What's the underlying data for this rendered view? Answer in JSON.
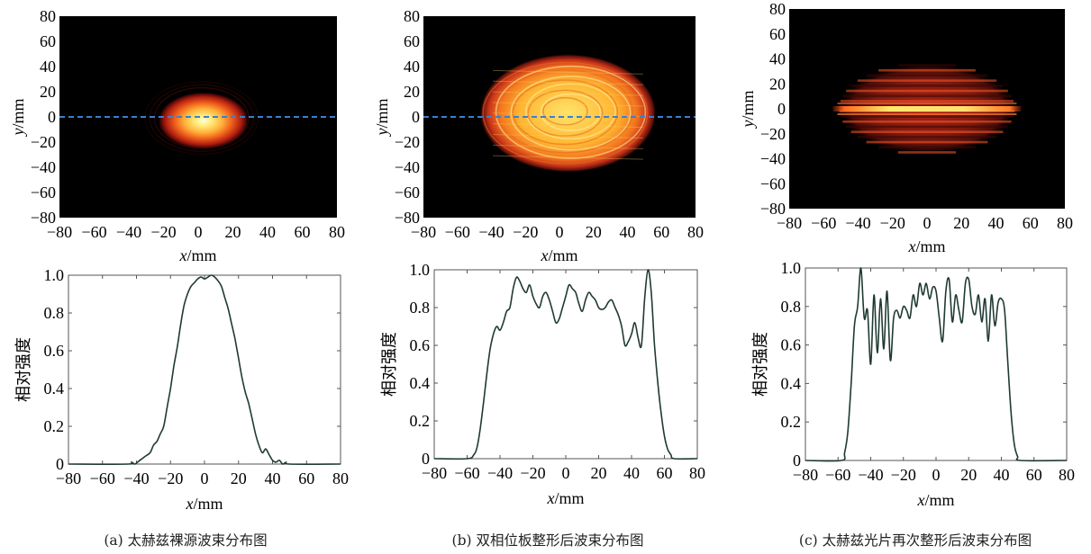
{
  "figure": {
    "captions": [
      "(a) 太赫兹裸源波束分布图",
      "(b) 双相位板整形后波束分布图",
      "(c) 太赫兹光片再次整形后波束分布图"
    ]
  },
  "colors": {
    "dashed_line": "#3a7fd0",
    "profile_line": "#1f3a33",
    "heatmap_background": "#000000"
  },
  "chart_data": [
    {
      "type": "heatmap",
      "panel": "a",
      "xlabel": "x/mm",
      "ylabel": "y/mm",
      "xlim": [
        -80,
        80
      ],
      "ylim": [
        -80,
        80
      ],
      "xticks": [
        -80,
        -60,
        -40,
        -20,
        0,
        20,
        40,
        60,
        80
      ],
      "yticks": [
        80,
        60,
        40,
        20,
        0,
        -20,
        -40,
        -60,
        -80
      ],
      "cut_line_y": 0,
      "beam": {
        "center": [
          3,
          -3
        ],
        "radius": [
          23,
          20
        ],
        "shape": "gaussian"
      }
    },
    {
      "type": "heatmap",
      "panel": "b",
      "xlabel": "x/mm",
      "ylabel": "y/mm",
      "xlim": [
        -80,
        80
      ],
      "ylim": [
        -80,
        80
      ],
      "xticks": [
        -80,
        -60,
        -40,
        -20,
        0,
        20,
        40,
        60,
        80
      ],
      "yticks": [
        80,
        60,
        40,
        20,
        0,
        -20,
        -40,
        -60,
        -80
      ],
      "cut_line_y": 0,
      "beam": {
        "center": [
          5,
          3
        ],
        "radius": [
          52,
          47
        ],
        "shape": "flat-top"
      }
    },
    {
      "type": "heatmap",
      "panel": "c",
      "xlabel": "x/mm",
      "ylabel": "y/mm",
      "xlim": [
        -80,
        80
      ],
      "ylim": [
        -80,
        80
      ],
      "xticks": [
        -80,
        -60,
        -40,
        -20,
        0,
        20,
        40,
        60,
        80
      ],
      "yticks": [
        80,
        60,
        40,
        20,
        0,
        -20,
        -40,
        -60,
        -80
      ],
      "beam": {
        "center": [
          0,
          0
        ],
        "radius": [
          52,
          37
        ],
        "shape": "striped",
        "sheet_y": 0
      }
    },
    {
      "type": "line",
      "panel": "a",
      "xlabel": "x/mm",
      "ylabel": "相对强度",
      "xlim": [
        -80,
        80
      ],
      "ylim": [
        0,
        1
      ],
      "xticks": [
        -80,
        -60,
        -40,
        -20,
        0,
        20,
        40,
        60,
        80
      ],
      "yticks": [
        0,
        0.2,
        0.4,
        0.6,
        0.8,
        1.0
      ],
      "x": [
        -80,
        -45,
        -43,
        -41,
        -38,
        -35,
        -32,
        -30,
        -28,
        -26,
        -24,
        -22,
        -20,
        -18,
        -16,
        -14,
        -12,
        -10,
        -8,
        -6,
        -4,
        -2,
        0,
        2,
        4,
        6,
        8,
        10,
        12,
        14,
        16,
        18,
        20,
        22,
        24,
        26,
        28,
        30,
        32,
        34,
        36,
        38,
        40,
        42,
        44,
        46,
        48,
        50,
        80
      ],
      "y": [
        0,
        0,
        0.01,
        0,
        0.02,
        0.04,
        0.06,
        0.1,
        0.12,
        0.16,
        0.2,
        0.3,
        0.4,
        0.52,
        0.62,
        0.74,
        0.84,
        0.9,
        0.94,
        0.96,
        0.98,
        0.99,
        0.98,
        0.99,
        1.0,
        0.99,
        0.97,
        0.94,
        0.88,
        0.82,
        0.74,
        0.66,
        0.56,
        0.46,
        0.38,
        0.32,
        0.24,
        0.16,
        0.1,
        0.06,
        0.08,
        0.05,
        0.02,
        0.01,
        0.02,
        0,
        0.01,
        0,
        0
      ]
    },
    {
      "type": "line",
      "panel": "b",
      "xlabel": "x/mm",
      "ylabel": "相对强度",
      "xlim": [
        -80,
        80
      ],
      "ylim": [
        0,
        1
      ],
      "xticks": [
        -80,
        -60,
        -40,
        -20,
        0,
        20,
        40,
        60,
        80
      ],
      "yticks": [
        0,
        0.2,
        0.4,
        0.6,
        0.8,
        1.0
      ],
      "x": [
        -80,
        -60,
        -56,
        -54,
        -52,
        -50,
        -48,
        -46,
        -44,
        -42,
        -40,
        -38,
        -36,
        -34,
        -32,
        -30,
        -28,
        -26,
        -24,
        -22,
        -20,
        -18,
        -16,
        -14,
        -12,
        -10,
        -8,
        -6,
        -4,
        -2,
        0,
        2,
        4,
        6,
        8,
        10,
        12,
        14,
        16,
        18,
        20,
        22,
        24,
        26,
        28,
        30,
        32,
        34,
        36,
        38,
        40,
        42,
        44,
        46,
        48,
        50,
        52,
        54,
        56,
        58,
        60,
        62,
        64,
        66,
        80
      ],
      "y": [
        0,
        0,
        0.02,
        0.06,
        0.16,
        0.3,
        0.45,
        0.58,
        0.66,
        0.7,
        0.68,
        0.72,
        0.78,
        0.8,
        0.9,
        0.96,
        0.94,
        0.9,
        0.88,
        0.92,
        0.86,
        0.82,
        0.8,
        0.86,
        0.88,
        0.84,
        0.78,
        0.72,
        0.74,
        0.8,
        0.86,
        0.92,
        0.9,
        0.88,
        0.82,
        0.78,
        0.84,
        0.88,
        0.86,
        0.84,
        0.8,
        0.79,
        0.8,
        0.83,
        0.84,
        0.8,
        0.76,
        0.7,
        0.6,
        0.62,
        0.66,
        0.72,
        0.64,
        0.6,
        0.85,
        1.0,
        0.88,
        0.6,
        0.4,
        0.24,
        0.12,
        0.05,
        0.02,
        0,
        0
      ]
    },
    {
      "type": "line",
      "panel": "c",
      "xlabel": "x/mm",
      "ylabel": "相对强度",
      "xlim": [
        -80,
        80
      ],
      "ylim": [
        0,
        1
      ],
      "xticks": [
        -80,
        -60,
        -40,
        -20,
        0,
        20,
        40,
        60,
        80
      ],
      "yticks": [
        0,
        0.2,
        0.4,
        0.6,
        0.8,
        1.0
      ],
      "x": [
        -80,
        -58,
        -56,
        -54,
        -52,
        -50,
        -48,
        -46,
        -44,
        -42,
        -40,
        -38,
        -36,
        -34,
        -32,
        -30,
        -28,
        -26,
        -24,
        -22,
        -20,
        -18,
        -16,
        -14,
        -12,
        -10,
        -8,
        -6,
        -4,
        -2,
        0,
        2,
        4,
        6,
        8,
        10,
        12,
        14,
        16,
        18,
        20,
        22,
        24,
        26,
        28,
        30,
        32,
        34,
        36,
        38,
        40,
        42,
        44,
        46,
        48,
        50,
        52,
        80
      ],
      "y": [
        0,
        0,
        0.04,
        0.15,
        0.4,
        0.7,
        0.8,
        1.0,
        0.74,
        0.78,
        0.5,
        0.86,
        0.56,
        0.84,
        0.58,
        0.88,
        0.52,
        0.74,
        0.78,
        0.74,
        0.8,
        0.78,
        0.74,
        0.86,
        0.8,
        0.92,
        0.86,
        0.92,
        0.84,
        0.9,
        0.88,
        0.74,
        0.62,
        0.88,
        0.94,
        0.72,
        0.86,
        0.78,
        0.72,
        0.92,
        0.94,
        0.8,
        0.76,
        0.86,
        0.72,
        0.84,
        0.62,
        0.86,
        0.7,
        0.82,
        0.84,
        0.78,
        0.5,
        0.24,
        0.08,
        0.02,
        0,
        0
      ]
    }
  ]
}
